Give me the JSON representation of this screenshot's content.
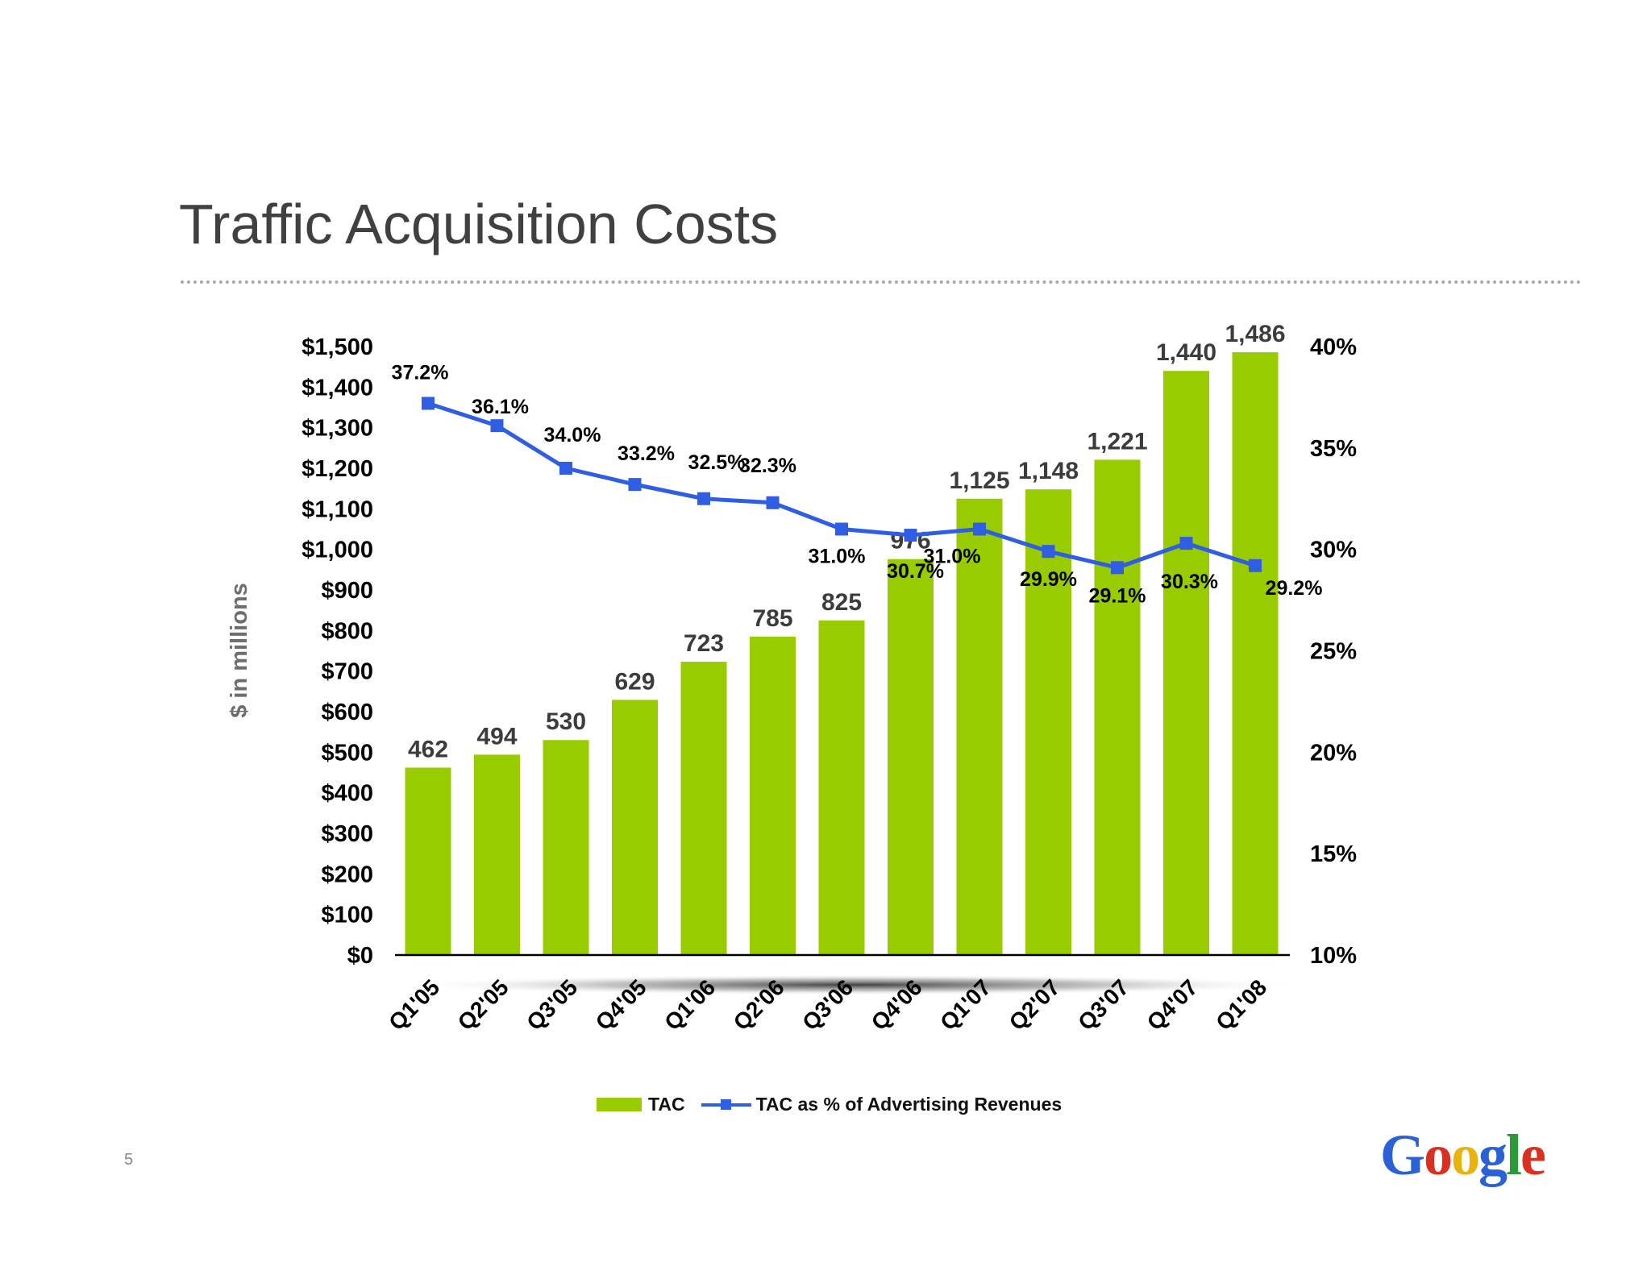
{
  "slide": {
    "title": "Traffic Acquisition Costs",
    "page_number": "5",
    "logo_text": "Google"
  },
  "chart_data": {
    "type": "bar",
    "title": "",
    "categories": [
      "Q1'05",
      "Q2'05",
      "Q3'05",
      "Q4'05",
      "Q1'06",
      "Q2'06",
      "Q3'06",
      "Q4'06",
      "Q1'07",
      "Q2'07",
      "Q3'07",
      "Q4'07",
      "Q1'08"
    ],
    "series": [
      {
        "name": "TAC",
        "kind": "bar",
        "axis": "left",
        "color": "#99cc00",
        "values": [
          462,
          494,
          530,
          629,
          723,
          785,
          825,
          976,
          1125,
          1148,
          1221,
          1440,
          1486
        ],
        "value_labels": [
          "462",
          "494",
          "530",
          "629",
          "723",
          "785",
          "825",
          "976",
          "1,125",
          "1,148",
          "1,221",
          "1,440",
          "1,486"
        ]
      },
      {
        "name": "TAC as % of Advertising Revenues",
        "kind": "line",
        "axis": "right",
        "color": "#2f5ee3",
        "values": [
          37.2,
          36.1,
          34.0,
          33.2,
          32.5,
          32.3,
          31.0,
          30.7,
          31.0,
          29.9,
          29.1,
          30.3,
          29.2
        ],
        "value_labels": [
          "37.2%",
          "36.1%",
          "34.0%",
          "33.2%",
          "32.5%",
          "32.3%",
          "31.0%",
          "30.7%",
          "31.0%",
          "29.9%",
          "29.1%",
          "30.3%",
          "29.2%"
        ]
      }
    ],
    "ylabel": "$ in millions",
    "xlabel": "",
    "ylim": [
      0,
      1500
    ],
    "y_ticks": [
      "$0",
      "$100",
      "$200",
      "$300",
      "$400",
      "$500",
      "$600",
      "$700",
      "$800",
      "$900",
      "$1,000",
      "$1,100",
      "$1,200",
      "$1,300",
      "$1,400",
      "$1,500"
    ],
    "y2lim": [
      10,
      40
    ],
    "y2_ticks": [
      "10%",
      "15%",
      "20%",
      "25%",
      "30%",
      "35%",
      "40%"
    ],
    "grid": false,
    "legend": {
      "position": "bottom",
      "items": [
        "TAC",
        "TAC as % of Advertising Revenues"
      ]
    }
  }
}
